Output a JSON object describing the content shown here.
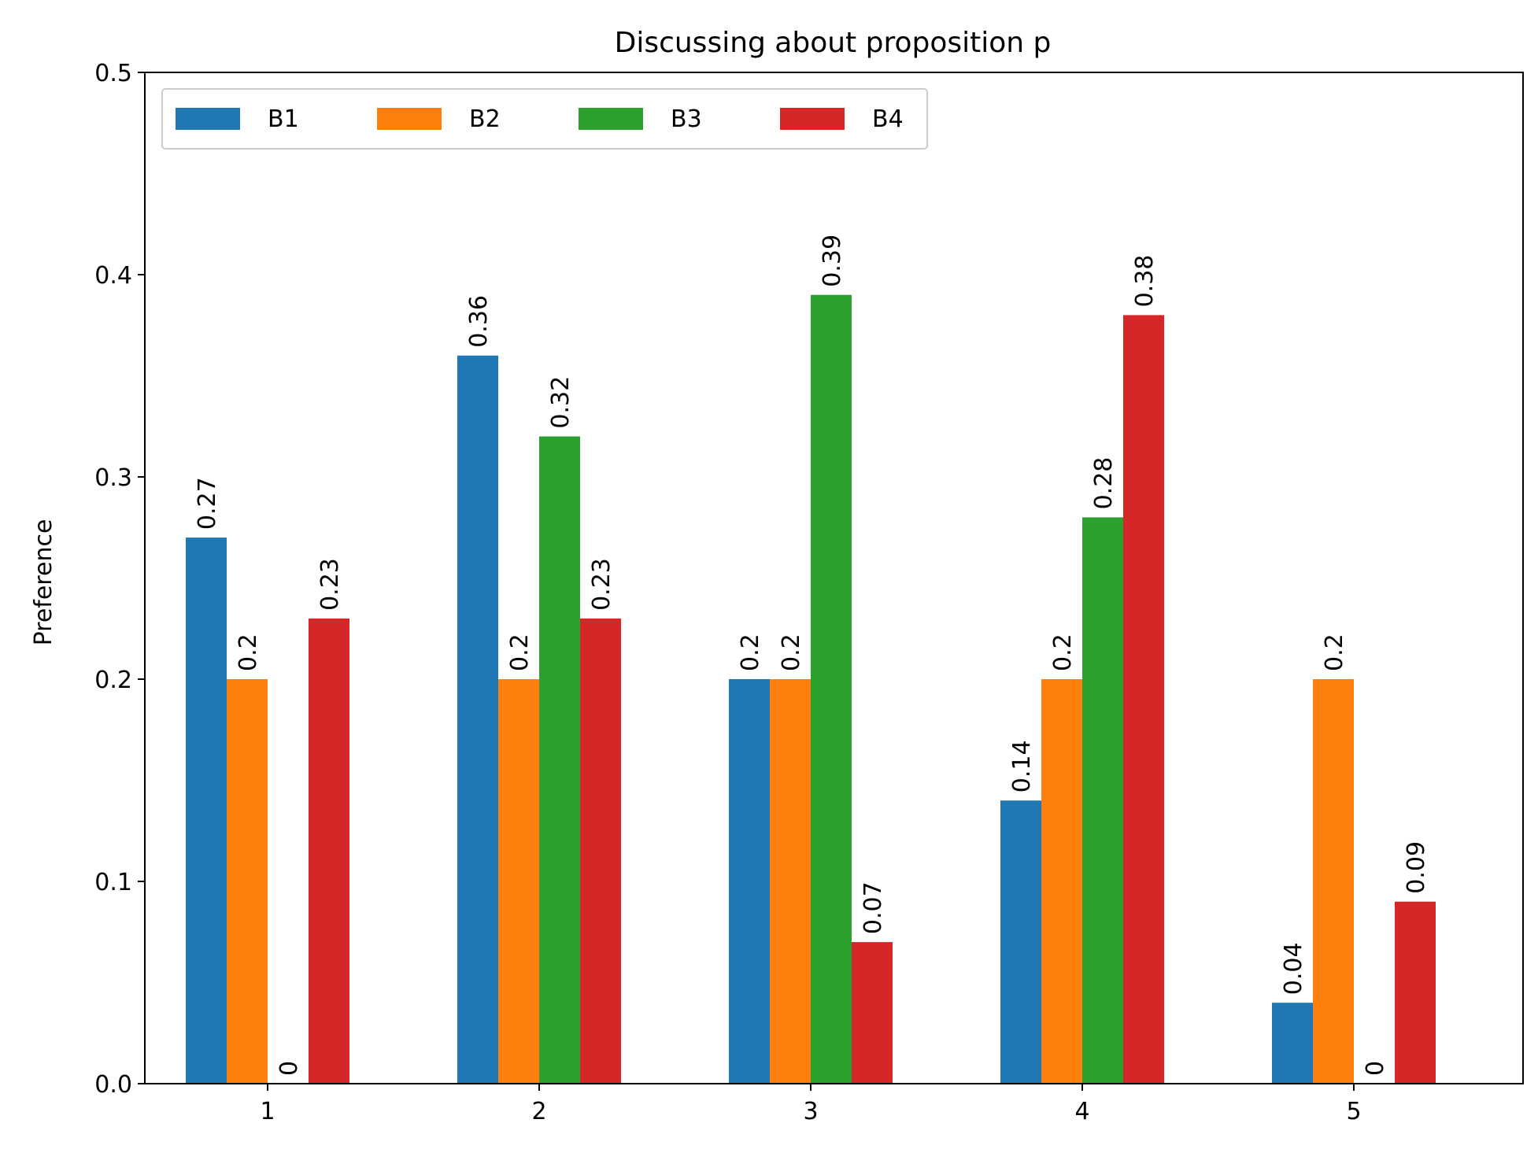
{
  "chart_data": {
    "type": "bar",
    "title": "Discussing about proposition p",
    "xlabel": "",
    "ylabel": "Preference",
    "categories": [
      "1",
      "2",
      "3",
      "4",
      "5"
    ],
    "ylim": [
      0,
      0.5
    ],
    "yticks": [
      0.0,
      0.1,
      0.2,
      0.3,
      0.4,
      0.5
    ],
    "ytick_labels": [
      "0.0",
      "0.1",
      "0.2",
      "0.3",
      "0.4",
      "0.5"
    ],
    "grid": false,
    "legend_position": "top-left",
    "legend_columns": 4,
    "series": [
      {
        "name": "B1",
        "color": "#1f77b4",
        "values": [
          0.27,
          0.36,
          0.2,
          0.14,
          0.04
        ],
        "labels": [
          "0.27",
          "0.36",
          "0.2",
          "0.14",
          "0.04"
        ]
      },
      {
        "name": "B2",
        "color": "#ff7f0e",
        "values": [
          0.2,
          0.2,
          0.2,
          0.2,
          0.2
        ],
        "labels": [
          "0.2",
          "0.2",
          "0.2",
          "0.2",
          "0.2"
        ]
      },
      {
        "name": "B3",
        "color": "#2ca02c",
        "values": [
          0,
          0.32,
          0.39,
          0.28,
          0
        ],
        "labels": [
          "0",
          "0.32",
          "0.39",
          "0.28",
          "0"
        ]
      },
      {
        "name": "B4",
        "color": "#d62728",
        "values": [
          0.23,
          0.23,
          0.07,
          0.38,
          0.09
        ],
        "labels": [
          "0.23",
          "0.23",
          "0.07",
          "0.38",
          "0.09"
        ]
      }
    ]
  }
}
